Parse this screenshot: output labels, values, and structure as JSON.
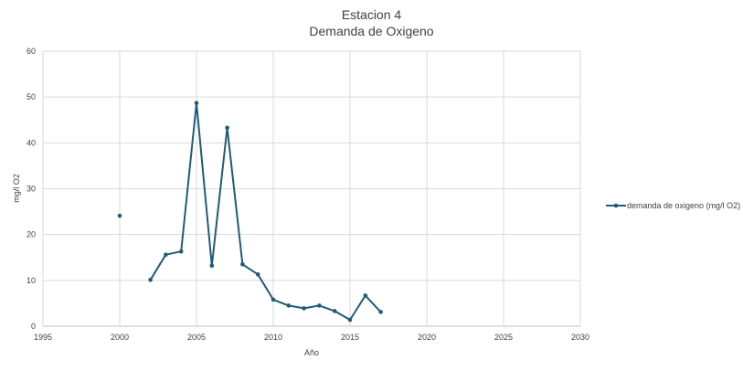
{
  "chart_data": {
    "type": "line",
    "title": "Estacion 4",
    "subtitle": "Demanda de Oxigeno",
    "xlabel": "Año",
    "ylabel": "mg/l O2",
    "xlim": [
      1995,
      2030
    ],
    "ylim": [
      0,
      60
    ],
    "x_ticks": [
      "1995",
      "2000",
      "2005",
      "2010",
      "2015",
      "2020",
      "2025",
      "2030"
    ],
    "y_ticks": [
      "0",
      "10",
      "20",
      "30",
      "40",
      "50",
      "60"
    ],
    "grid": true,
    "legend_position": "right",
    "series": [
      {
        "name": "demanda de oxigeno (mg/l O2)",
        "color": "#1f5c78",
        "points": [
          [
            2000,
            24.1
          ],
          [
            2001,
            null
          ],
          [
            2002,
            10.1
          ],
          [
            2003,
            15.6
          ],
          [
            2004,
            16.3
          ],
          [
            2005,
            48.7
          ],
          [
            2006,
            13.2
          ],
          [
            2007,
            43.3
          ],
          [
            2008,
            13.5
          ],
          [
            2009,
            11.3
          ],
          [
            2010,
            5.8
          ],
          [
            2011,
            4.5
          ],
          [
            2012,
            3.9
          ],
          [
            2013,
            4.5
          ],
          [
            2014,
            3.3
          ],
          [
            2015,
            1.4
          ],
          [
            2016,
            6.7
          ],
          [
            2017,
            3.1
          ]
        ]
      }
    ]
  }
}
